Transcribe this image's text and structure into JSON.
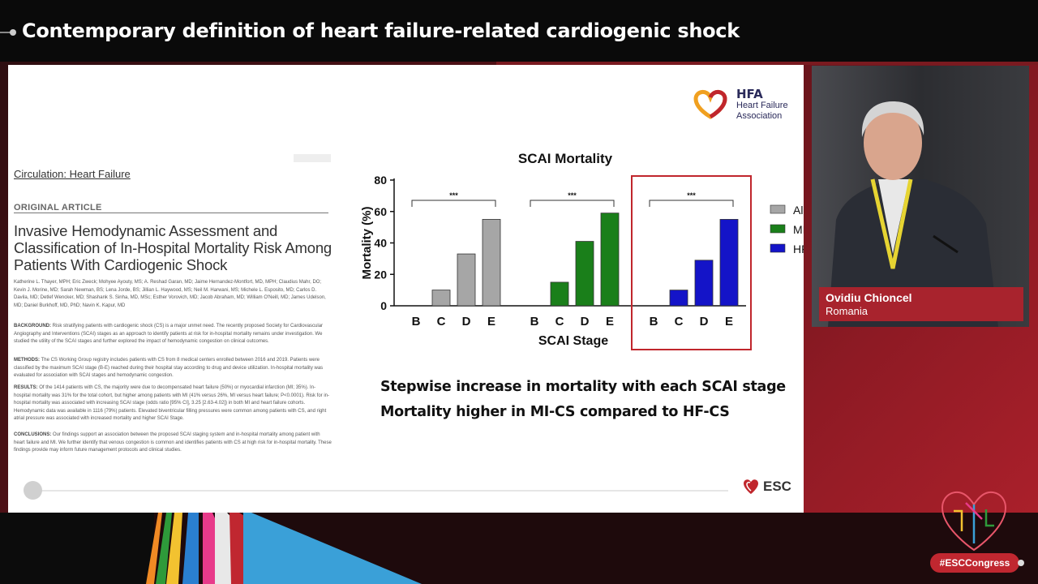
{
  "header": {
    "title": "Contemporary definition of heart failure-related cardiogenic shock"
  },
  "slide": {
    "logo": {
      "abbr": "HFA",
      "line1": "Heart Failure",
      "line2": "Association"
    },
    "paper": {
      "journal": "Circulation: Heart Failure",
      "article_type": "ORIGINAL ARTICLE",
      "title": "Invasive Hemodynamic Assessment and Classification of In-Hospital Mortality Risk Among Patients With Cardiogenic Shock",
      "authors": "Katherine L. Thayer, MPH; Eric Zweck; Mohyee Ayouty, MS; A. Reshad Garan, MD; Jaime Hernandez-Montfort, MD, MPH; Claudius Mahr, DO; Kevin J. Morine, MD; Sarah Newman, BS; Lena Jorde, BS; Jillian L. Haywood, MS; Neil M. Harwani, MS; Michele L. Esposito, MD; Carlos D. Davila, MD; Detlef Wencker, MD; Shashank S. Sinha, MD, MSc; Esther Vorovich, MD; Jacob Abraham, MD; William O'Neill, MD; James Udelson, MD; Daniel Burkhoff, MD, PhD; Navin K. Kapur, MD",
      "background_label": "BACKGROUND:",
      "background": "Risk stratifying patients with cardiogenic shock (CS) is a major unmet need. The recently proposed Society for Cardiovascular Angiography and Interventions (SCAI) stages as an approach to identify patients at risk for in-hospital mortality remains under investigation. We studied the utility of the SCAI stages and further explored the impact of hemodynamic congestion on clinical outcomes.",
      "methods_label": "METHODS:",
      "methods": "The CS Working Group registry includes patients with CS from 8 medical centers enrolled between 2016 and 2019. Patients were classified by the maximum SCAI stage (B-E) reached during their hospital stay according to drug and device utilization. In-hospital mortality was evaluated for association with SCAI stages and hemodynamic congestion.",
      "results_label": "RESULTS:",
      "results": "Of the 1414 patients with CS, the majority were due to decompensated heart failure (50%) or myocardial infarction (MI; 35%). In-hospital mortality was 31% for the total cohort, but higher among patients with MI (41% versus 26%, MI versus heart failure; P<0.0001). Risk for in-hospital mortality was associated with increasing SCAI stage (odds ratio [95% CI], 3.25 [2.63-4.02]) in both MI and heart failure cohorts. Hemodynamic data was available in 1116 (79%) patients. Elevated biventricular filling pressures were common among patients with CS, and right atrial pressure was associated with increased mortality and higher SCAI Stage.",
      "conclusions_label": "CONCLUSIONS:",
      "conclusions": "Our findings support an association between the proposed SCAI staging system and in-hospital mortality among patient with heart failure and MI. We further identify that venous congestion is common and identifies patients with CS at high risk for in-hospital mortality. These findings provide may inform future management protocols and clinical studies."
    },
    "statement_line1": "Stepwise increase in mortality with each SCAI stage",
    "statement_line2": "Mortality higher in MI-CS compared to HF-CS",
    "esc_label": "ESC"
  },
  "chart_data": {
    "type": "bar",
    "title": "SCAI Mortality",
    "xlabel": "SCAI Stage",
    "ylabel": "Mortality (%)",
    "ylim": [
      0,
      80
    ],
    "yticks": [
      0,
      20,
      40,
      60,
      80
    ],
    "categories": [
      "B",
      "C",
      "D",
      "E"
    ],
    "significance": "***",
    "legend_position": "right",
    "series": [
      {
        "name": "All",
        "color": "#a6a6a6",
        "values": [
          0,
          10,
          33,
          55
        ]
      },
      {
        "name": "MI",
        "color": "#1a7f1a",
        "values": [
          0,
          15,
          41,
          59
        ]
      },
      {
        "name": "HF",
        "color": "#1414c8",
        "values": [
          0,
          10,
          29,
          55
        ]
      }
    ]
  },
  "speaker": {
    "name": "Ovidiu Chioncel",
    "country": "Romania"
  },
  "footer": {
    "hashtag": "#ESCCongress"
  },
  "colors": {
    "accent": "#a8232d",
    "highlight_box": "#c0262c"
  }
}
